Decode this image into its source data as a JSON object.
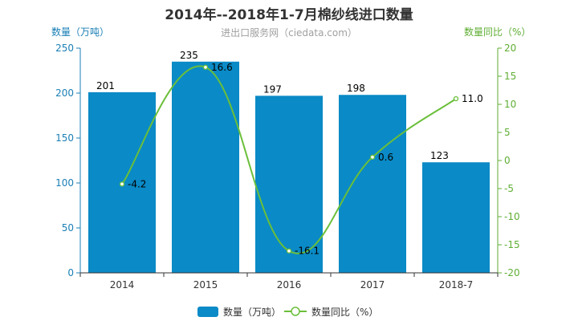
{
  "chart_data": {
    "type": "bar",
    "title": "2014年--2018年1-7月棉纱线进口数量",
    "subtitle": "进出口服务网（ciedata.com）",
    "categories": [
      "2014",
      "2015",
      "2016",
      "2017",
      "2018-7"
    ],
    "series": [
      {
        "name": "数量（万吨）",
        "type": "bar",
        "axis": "left",
        "values": [
          201,
          235,
          197,
          198,
          123
        ]
      },
      {
        "name": "数量同比（%）",
        "type": "line",
        "axis": "right",
        "values": [
          -4.2,
          16.6,
          -16.1,
          0.6,
          11.0
        ]
      }
    ],
    "ylabel": "数量（万吨）",
    "ylabel_right": "数量同比（%）",
    "ylim": [
      0,
      250
    ],
    "ylim_right": [
      -20,
      20
    ],
    "yticks": [
      0,
      50,
      100,
      150,
      200,
      250
    ],
    "yticks_right": [
      -20,
      -15,
      -10,
      -5,
      0,
      5,
      10,
      15,
      20
    ],
    "bar_labels": [
      "201",
      "235",
      "197",
      "198",
      "123"
    ],
    "line_labels": [
      "-4.2",
      "16.6",
      "-16.1",
      "0.6",
      "11.0"
    ],
    "legend_position": "bottom",
    "grid": false
  },
  "colors": {
    "bar": "#0a8ac6",
    "line": "#6abf3a",
    "left_axis": "#1a7fb5",
    "right_axis": "#5fae33",
    "title": "#333333"
  }
}
